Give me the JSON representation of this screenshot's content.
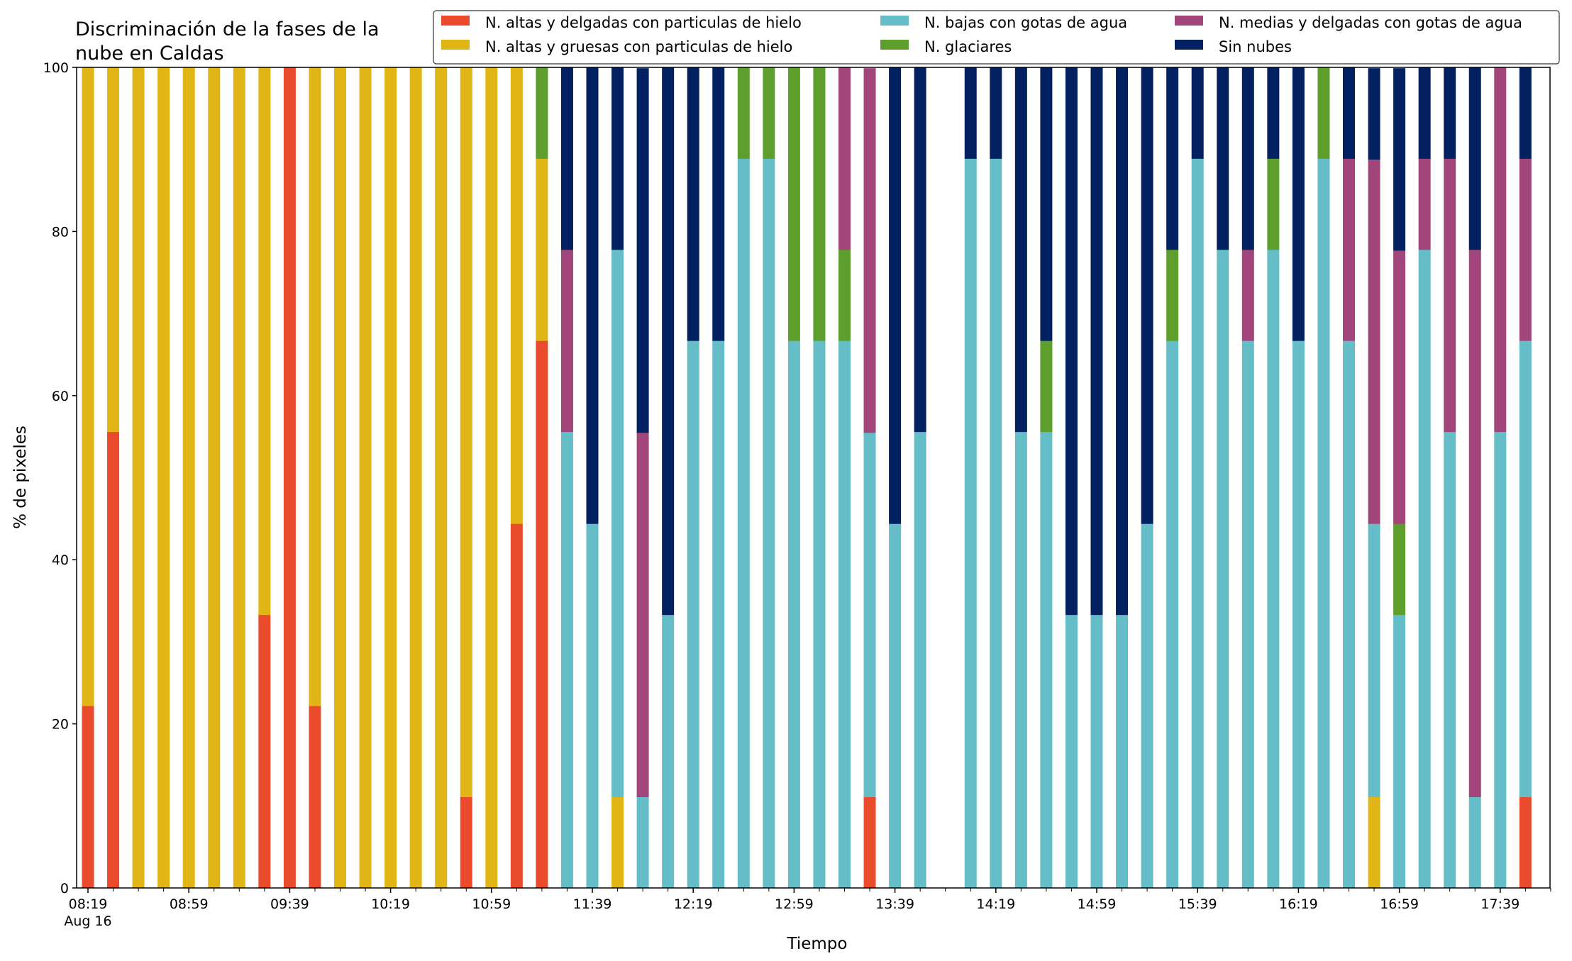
{
  "chart_data": {
    "type": "bar",
    "stacked": true,
    "title_lines": [
      "Discriminación de la fases de la",
      "nube en Caldas"
    ],
    "xlabel": "Tiempo",
    "ylabel": "% de pixeles",
    "ylim": [
      0,
      100
    ],
    "yticks": [
      0,
      20,
      40,
      60,
      80,
      100
    ],
    "y_tick_labels": [
      "0",
      "20",
      "40",
      "60",
      "80",
      "100"
    ],
    "x_tick_labels": [
      "08:19",
      "08:59",
      "09:39",
      "10:19",
      "10:59",
      "11:39",
      "12:19",
      "12:59",
      "13:39",
      "14:19",
      "14:59",
      "15:39",
      "16:19",
      "16:59",
      "17:39"
    ],
    "x_sub_label": "Aug 16",
    "x_axis_start": "08:19",
    "bar_interval_minutes": 10,
    "grid": false,
    "legend_position": "top-right",
    "categories": [
      "08:19",
      "08:29",
      "08:39",
      "08:49",
      "08:59",
      "09:09",
      "09:19",
      "09:29",
      "09:39",
      "09:49",
      "09:59",
      "10:09",
      "10:19",
      "10:29",
      "10:39",
      "10:49",
      "10:59",
      "11:09",
      "11:19",
      "11:29",
      "11:39",
      "11:49",
      "11:59",
      "12:09",
      "12:19",
      "12:29",
      "12:39",
      "12:49",
      "12:59",
      "13:09",
      "13:19",
      "13:29",
      "13:39",
      "13:49",
      "13:59",
      "14:09",
      "14:19",
      "14:29",
      "14:39",
      "14:49",
      "14:59",
      "15:09",
      "15:19",
      "15:29",
      "15:39",
      "15:49",
      "15:59",
      "16:09",
      "16:19",
      "16:29",
      "16:39",
      "16:49",
      "16:59",
      "17:09",
      "17:19",
      "17:29",
      "17:39",
      "17:49"
    ],
    "series": [
      {
        "name": "N. altas y delgadas con particulas de hielo",
        "color": "#e94b2c",
        "values": [
          22.2,
          55.6,
          0,
          0,
          0,
          0,
          0,
          33.3,
          100,
          22.2,
          0,
          0,
          0,
          0,
          0,
          11.1,
          0,
          44.4,
          66.7,
          0,
          0,
          0,
          0,
          0,
          0,
          0,
          0,
          0,
          0,
          0,
          0,
          11.1,
          0,
          0,
          0,
          0,
          0,
          0,
          0,
          0,
          0,
          0,
          0,
          0,
          0,
          0,
          0,
          0,
          0,
          0,
          0,
          0,
          0,
          0,
          0,
          0,
          0,
          11.1
        ]
      },
      {
        "name": "N. altas y gruesas con particulas de hielo",
        "color": "#e1b516",
        "values": [
          77.8,
          44.4,
          100,
          100,
          100,
          100,
          100,
          66.7,
          0,
          77.8,
          100,
          100,
          100,
          100,
          100,
          88.9,
          100,
          55.6,
          22.2,
          0,
          0,
          11.1,
          0,
          0,
          0,
          0,
          0,
          0,
          0,
          0,
          0,
          0,
          0,
          0,
          0,
          0,
          0,
          0,
          0,
          0,
          0,
          0,
          0,
          0,
          0,
          0,
          0,
          0,
          0,
          0,
          0,
          11.1,
          0,
          0,
          0,
          0,
          0,
          0
        ]
      },
      {
        "name": "N. bajas con gotas de agua",
        "color": "#65bdc8",
        "values": [
          0,
          0,
          0,
          0,
          0,
          0,
          0,
          0,
          0,
          0,
          0,
          0,
          0,
          0,
          0,
          0,
          0,
          0,
          0,
          55.6,
          44.4,
          66.7,
          11.1,
          33.3,
          66.7,
          66.7,
          88.9,
          88.9,
          66.7,
          66.7,
          66.7,
          44.4,
          44.4,
          55.6,
          0,
          88.9,
          88.9,
          55.6,
          55.6,
          33.3,
          33.3,
          33.3,
          44.4,
          66.7,
          88.9,
          77.8,
          66.7,
          77.8,
          66.7,
          88.9,
          66.7,
          33.3,
          33.3,
          77.8,
          55.6,
          11.1,
          55.6,
          55.6
        ]
      },
      {
        "name": "N. glaciares",
        "color": "#5e9e2c",
        "values": [
          0,
          0,
          0,
          0,
          0,
          0,
          0,
          0,
          0,
          0,
          0,
          0,
          0,
          0,
          0,
          0,
          0,
          0,
          11.1,
          0,
          0,
          0,
          0,
          0,
          0,
          0,
          11.1,
          11.1,
          33.3,
          33.3,
          11.1,
          0,
          0,
          0,
          0,
          0,
          0,
          0,
          11.1,
          0,
          0,
          0,
          0,
          11.1,
          0,
          0,
          0,
          11.1,
          0,
          11.1,
          0,
          0,
          11.1,
          0,
          0,
          0,
          0,
          0
        ]
      },
      {
        "name": "N. medias y delgadas con gotas de agua",
        "color": "#a2457a",
        "values": [
          0,
          0,
          0,
          0,
          0,
          0,
          0,
          0,
          0,
          0,
          0,
          0,
          0,
          0,
          0,
          0,
          0,
          0,
          0,
          22.2,
          0,
          0,
          44.4,
          0,
          0,
          0,
          0,
          0,
          0,
          0,
          22.2,
          44.4,
          0,
          0,
          0,
          0,
          0,
          0,
          0,
          0,
          0,
          0,
          0,
          0,
          0,
          0,
          11.1,
          0,
          0,
          0,
          22.2,
          44.4,
          33.3,
          11.1,
          33.3,
          66.7,
          44.4,
          22.2
        ]
      },
      {
        "name": "Sin nubes",
        "color": "#032060",
        "values": [
          0,
          0,
          0,
          0,
          0,
          0,
          0,
          0,
          0,
          0,
          0,
          0,
          0,
          0,
          0,
          0,
          0,
          0,
          0,
          22.2,
          55.6,
          22.2,
          44.4,
          66.7,
          33.3,
          33.3,
          0,
          0,
          0,
          0,
          0,
          0,
          55.6,
          44.4,
          0,
          11.1,
          11.1,
          44.4,
          33.3,
          66.7,
          66.7,
          66.7,
          55.6,
          22.2,
          11.1,
          22.2,
          22.2,
          11.1,
          33.3,
          0,
          11.1,
          11.1,
          22.2,
          11.1,
          11.1,
          22.2,
          0,
          11.1
        ]
      }
    ]
  }
}
